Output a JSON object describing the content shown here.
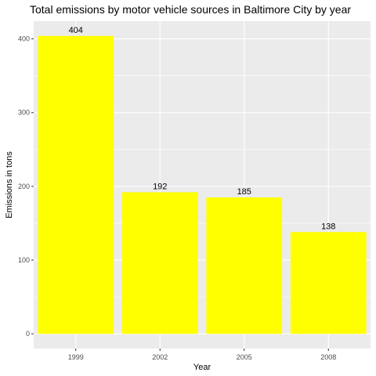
{
  "chart_data": {
    "type": "bar",
    "title": "Total emissions by motor vehicle sources in Baltimore City by year",
    "xlabel": "Year",
    "ylabel": "Emissions in tons",
    "categories": [
      "1999",
      "2002",
      "2005",
      "2008"
    ],
    "values": [
      404,
      192,
      185,
      138
    ],
    "data_labels": [
      "404",
      "192",
      "185",
      "138"
    ],
    "ylim": [
      -20,
      424
    ],
    "yticks": [
      0,
      100,
      200,
      300,
      400
    ],
    "ytick_labels": [
      "0",
      "100",
      "200",
      "300",
      "400"
    ],
    "grid": true,
    "legend": "none",
    "colors": {
      "bar": "#FFFF00",
      "panel_background": "#EBEBEB",
      "grid_major": "#FFFFFF",
      "tick_text": "#4D4D4D",
      "tick_mark": "#333333"
    }
  }
}
